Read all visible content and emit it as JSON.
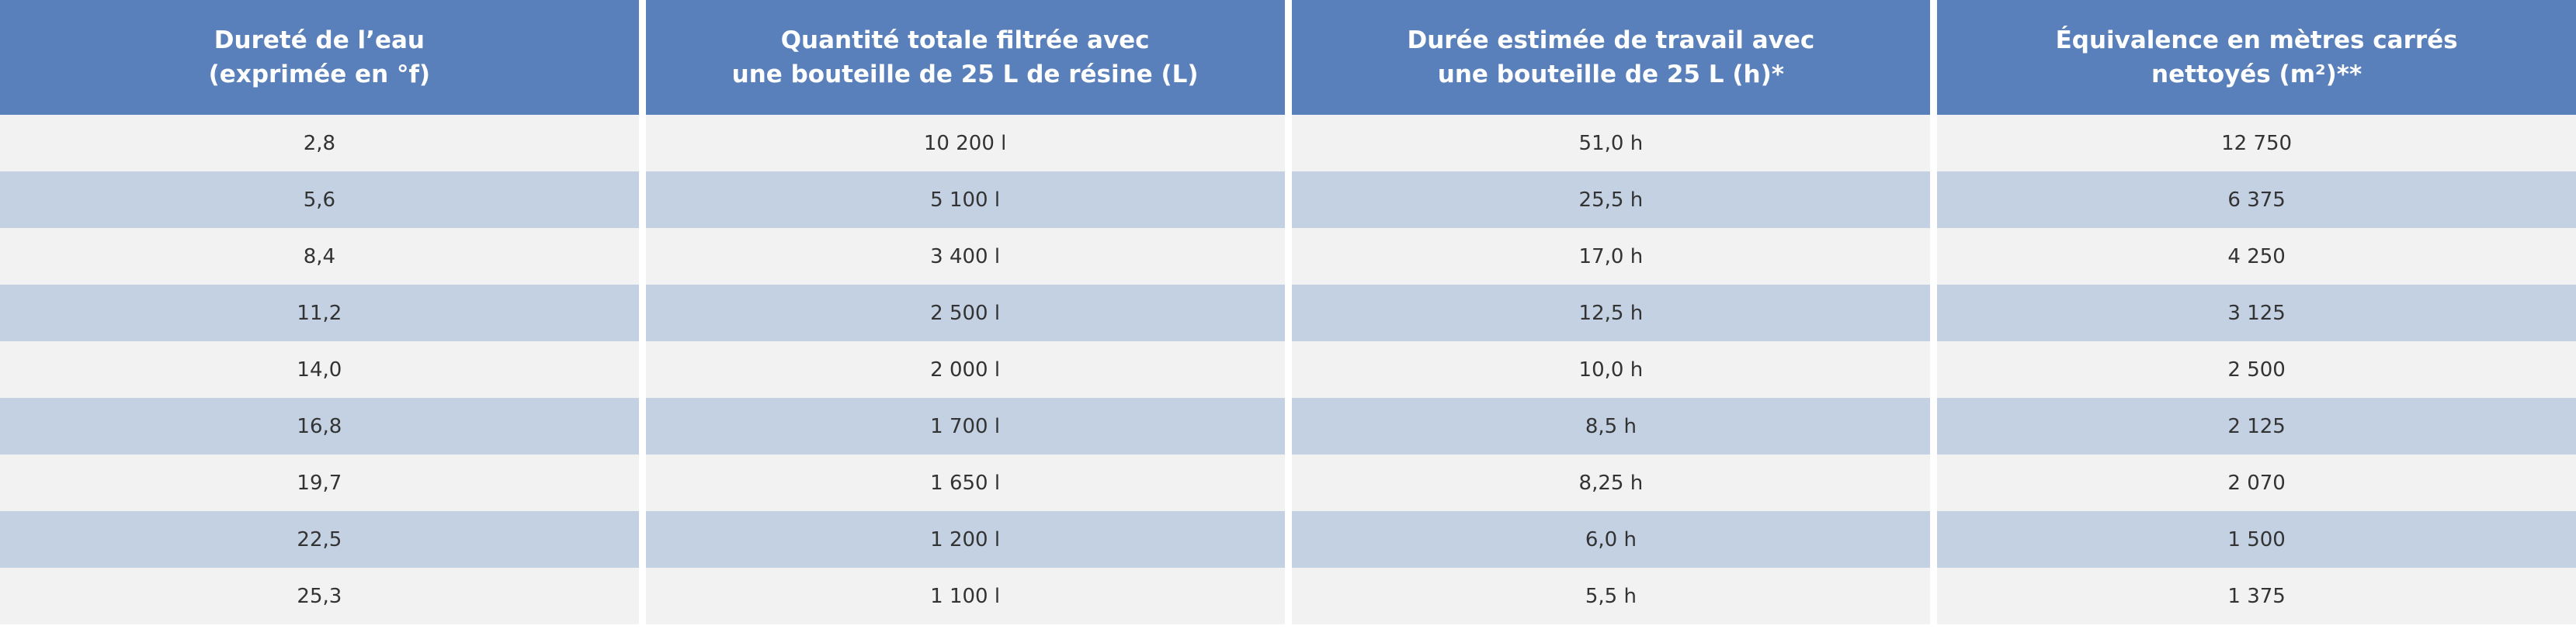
{
  "table": {
    "header": [
      [
        "Dureté de l’eau",
        "(exprimée en °f)"
      ],
      [
        "Quantité totale filtrée avec",
        "une bouteille de 25 L de résine (L)"
      ],
      [
        "Durée estimée de travail avec",
        "une bouteille de 25 L (h)*"
      ],
      [
        "Équivalence en mètres carrés",
        "nettoyés (m²)**"
      ]
    ],
    "rows": [
      [
        "2,8",
        "10 200 l",
        "51,0 h",
        "12 750"
      ],
      [
        "5,6",
        "5 100 l",
        "25,5 h",
        "6 375"
      ],
      [
        "8,4",
        "3 400 l",
        "17,0 h",
        "4 250"
      ],
      [
        "11,2",
        "2 500 l",
        "12,5 h",
        "3 125"
      ],
      [
        "14,0",
        "2 000 l",
        "10,0 h",
        "2 500"
      ],
      [
        "16,8",
        "1 700 l",
        "8,5 h",
        "2 125"
      ],
      [
        "19,7",
        "1 650 l",
        "8,25 h",
        "2 070"
      ],
      [
        "22,5",
        "1 200 l",
        "6,0 h",
        "1 500"
      ],
      [
        "25,3",
        "1 100 l",
        "5,5 h",
        "1 375"
      ]
    ]
  }
}
